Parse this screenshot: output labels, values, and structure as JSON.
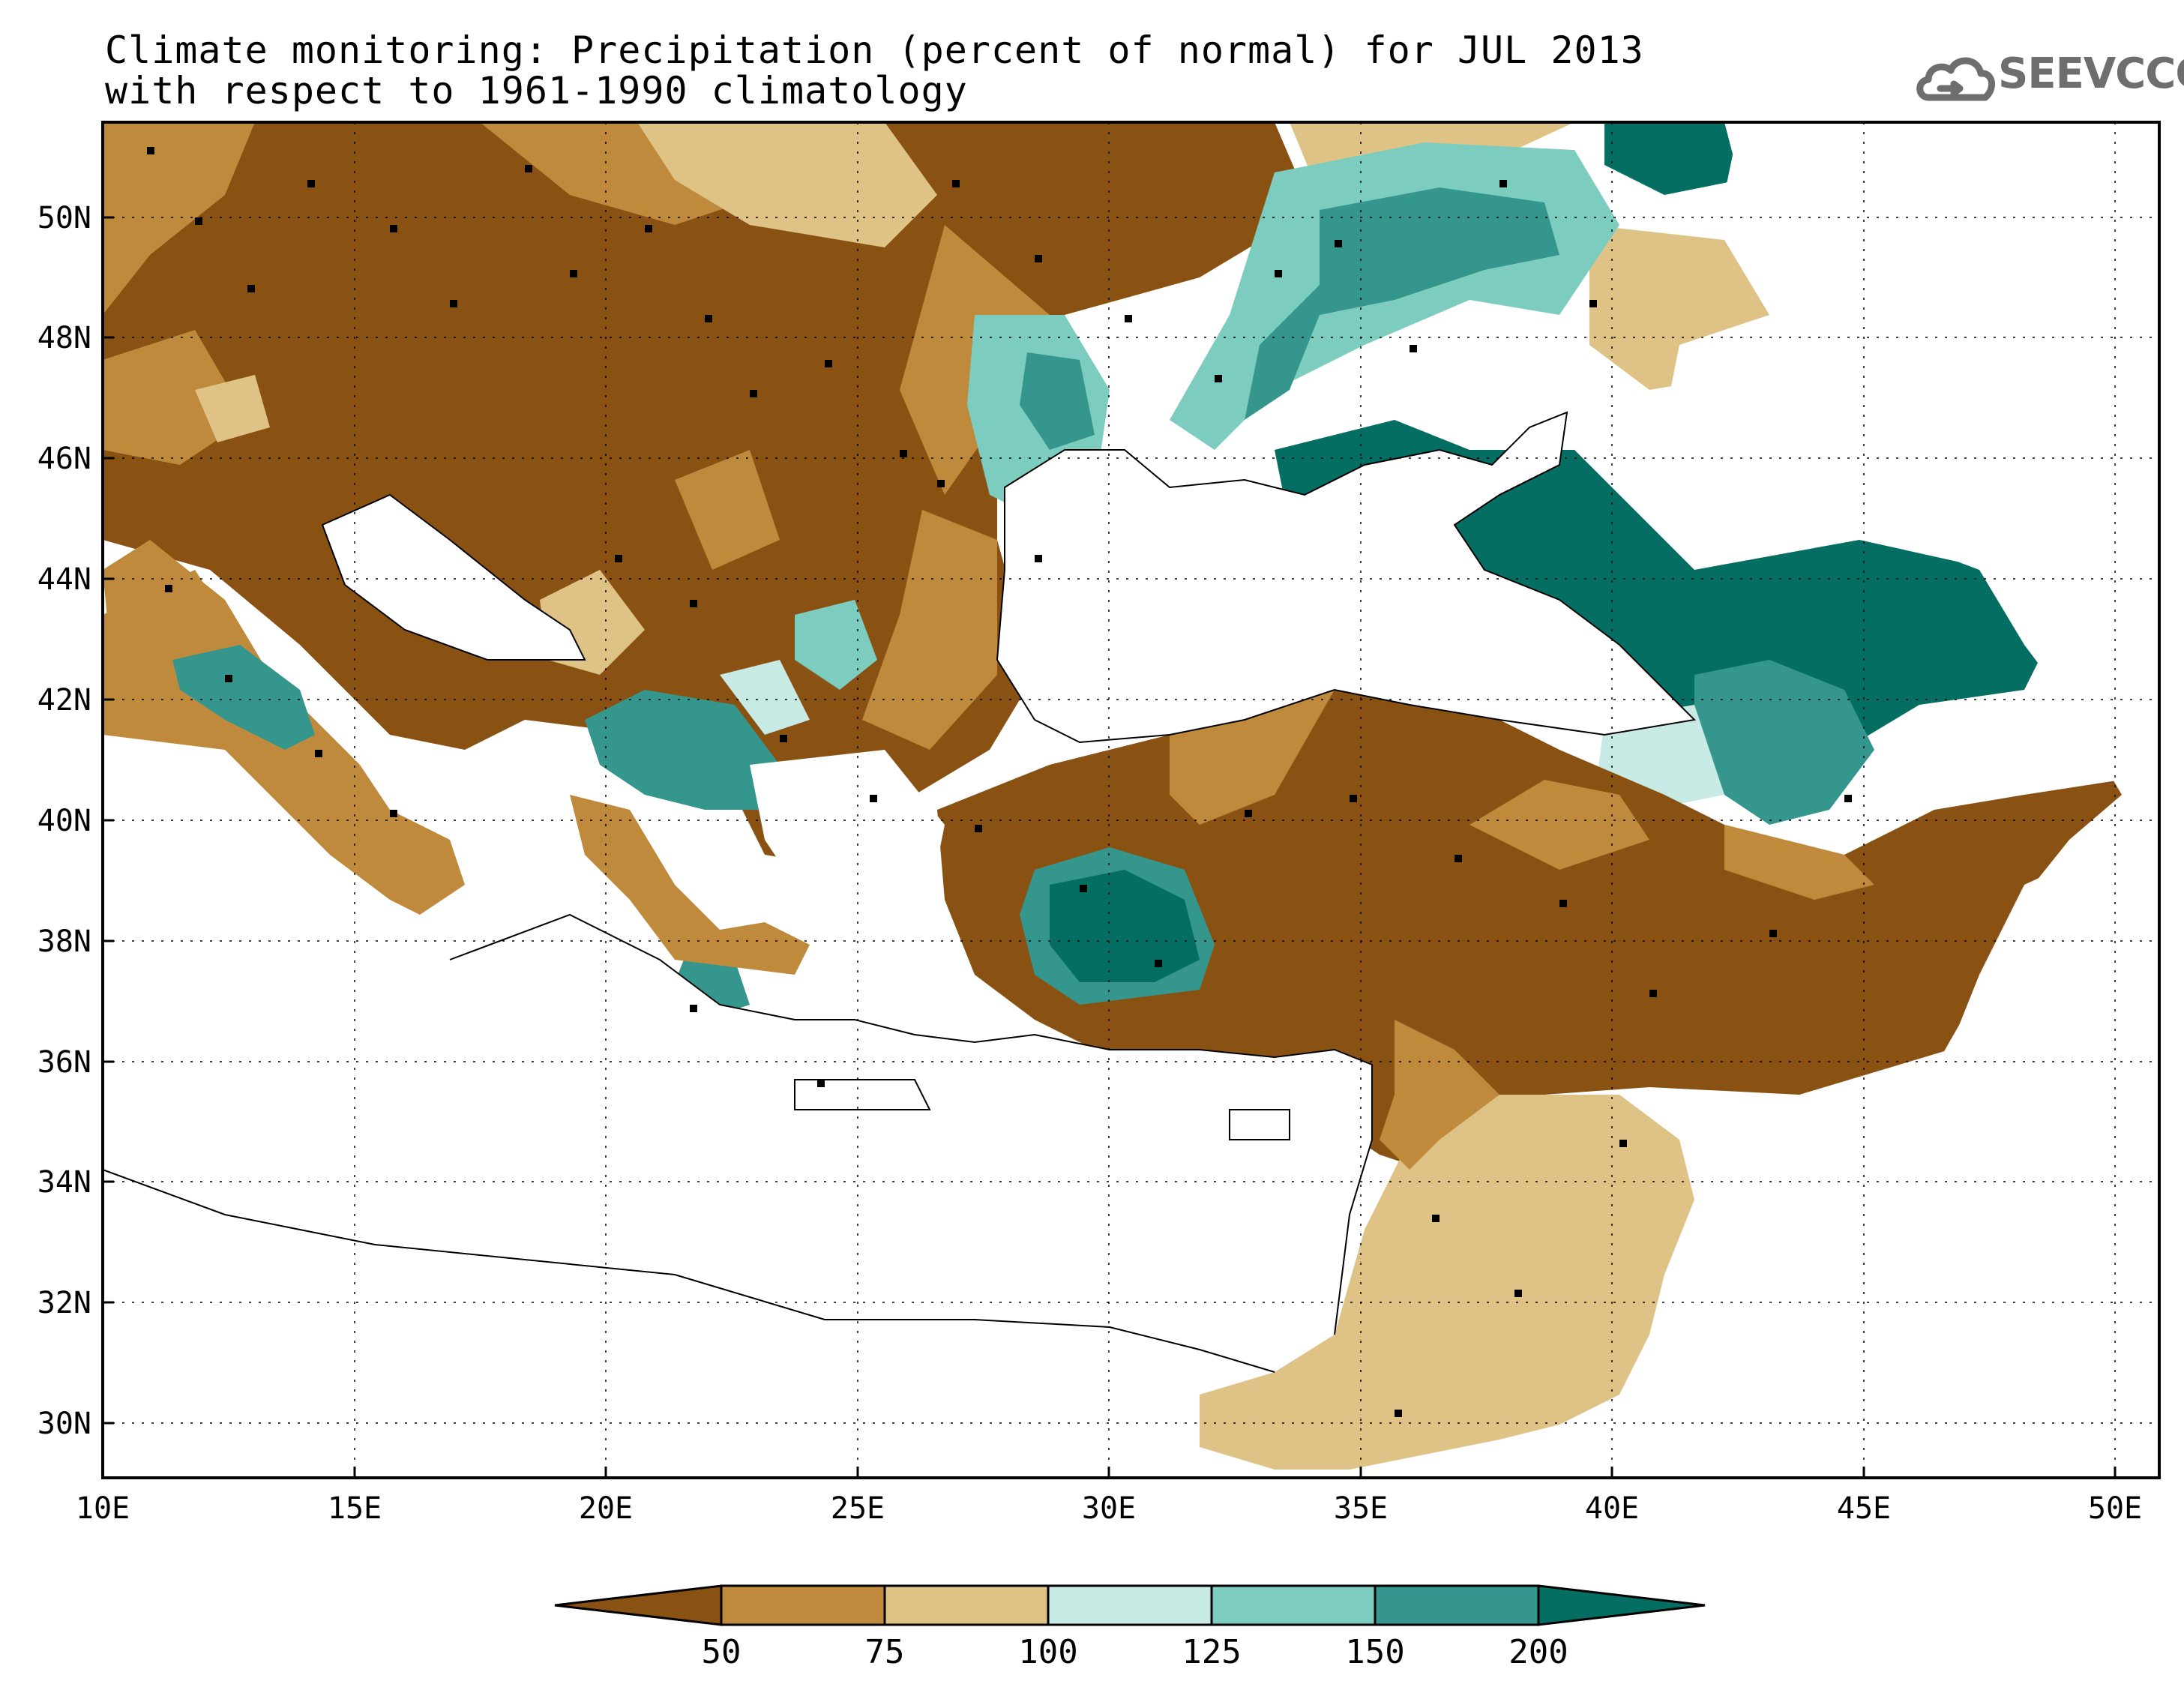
{
  "title": {
    "line1": "Climate monitoring: Precipitation (percent of normal) for JUL 2013",
    "line2": "with respect to 1961-1990 climatology"
  },
  "logo": {
    "text": "SEEVCCC",
    "icon": "cloud-icon",
    "color": "#6e6e6e"
  },
  "map": {
    "lon_range": [
      10,
      51
    ],
    "lat_range": [
      29,
      51.5
    ],
    "x_ticks": [
      "10E",
      "15E",
      "20E",
      "25E",
      "30E",
      "35E",
      "40E",
      "45E",
      "50E"
    ],
    "y_ticks": [
      "30N",
      "32N",
      "34N",
      "36N",
      "38N",
      "40N",
      "42N",
      "44N",
      "46N",
      "48N",
      "50N"
    ],
    "grid": "dotted"
  },
  "colorbar": {
    "labels": [
      "50",
      "75",
      "100",
      "125",
      "150",
      "200"
    ],
    "colors": [
      "#8a5212",
      "#c08a3c",
      "#dfc386",
      "#c7ebe4",
      "#7ccdbf",
      "#35968d",
      "#046e63"
    ]
  }
}
